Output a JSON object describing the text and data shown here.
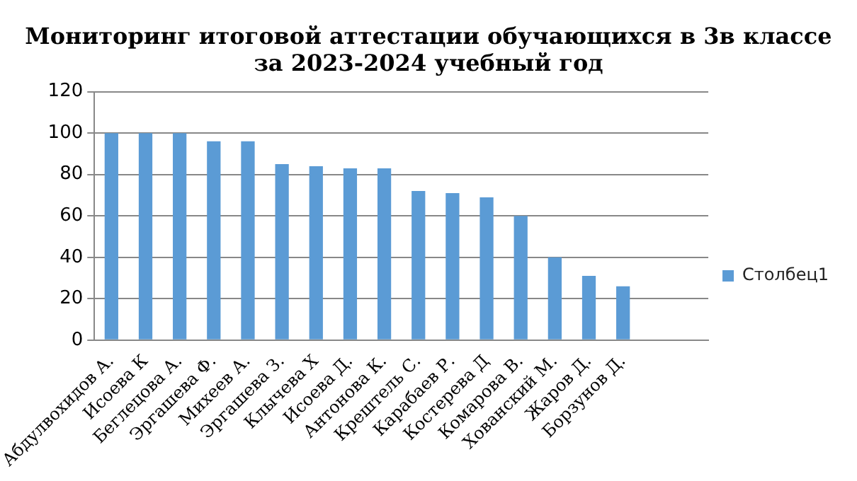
{
  "chart_data": {
    "type": "bar",
    "title": "Мониторинг итоговой аттестации обучающихся в 3в классе за 2023-2024 учебный год",
    "categories": [
      "Абдулвохидов А.",
      "Исоева К",
      "Беглецова А.",
      "Эргашева Ф.",
      "Михеев А.",
      "Эргашева З.",
      "Клычева Х",
      "Исоева Д.",
      "Антонова К.",
      "Крештель С.",
      "Карабаев Р.",
      "Костерева Д",
      "Комарова В.",
      "Хованский М.",
      "Жаров Д.",
      "Борзунов Д.",
      null,
      null
    ],
    "series": [
      {
        "name": "Столбец1",
        "color": "#5b9bd5",
        "values": [
          100,
          100,
          100,
          96,
          96,
          85,
          84,
          83,
          83,
          72,
          71,
          69,
          60,
          40,
          31,
          26,
          null,
          null
        ]
      }
    ],
    "ylim": [
      0,
      120
    ],
    "yticks": [
      0,
      20,
      40,
      60,
      80,
      100,
      120
    ],
    "grid": "y",
    "legend": "right"
  }
}
